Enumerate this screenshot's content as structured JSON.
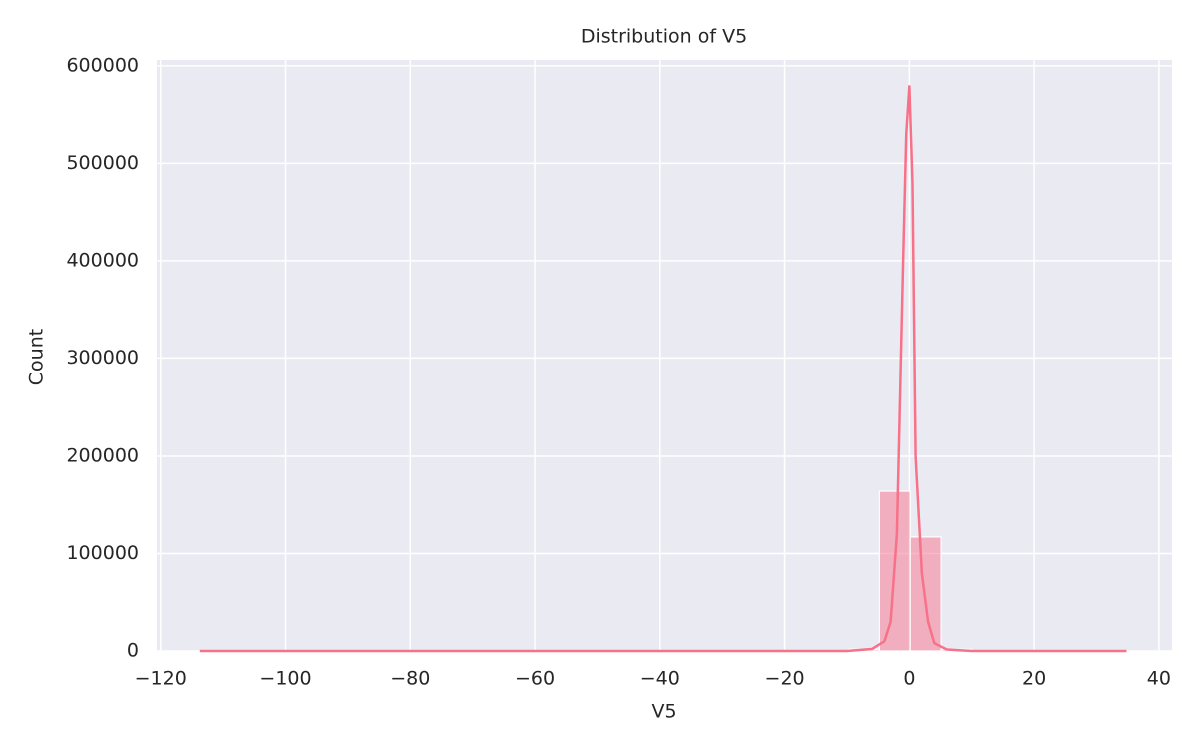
{
  "chart_data": {
    "type": "histogram",
    "title": "Distribution of V5",
    "x_label": "V5",
    "y_label": "Count",
    "bins": [
      -113.74,
      -108.79,
      -103.84,
      -98.89,
      -93.94,
      -88.98,
      -84.03,
      -79.08,
      -74.13,
      -69.18,
      -64.23,
      -59.28,
      -54.32,
      -49.37,
      -44.42,
      -39.47,
      -34.52,
      -29.57,
      -24.62,
      -19.67,
      -14.71,
      -9.76,
      -4.81,
      0.14,
      5.09,
      10.04,
      14.99,
      19.95,
      24.9,
      29.85,
      34.8
    ],
    "values": [
      1,
      0,
      0,
      0,
      0,
      0,
      0,
      0,
      0,
      0,
      0,
      0,
      0,
      0,
      0,
      0,
      0,
      0,
      0,
      5,
      60,
      1800,
      164000,
      117000,
      1700,
      200,
      30,
      8,
      2,
      1
    ],
    "color": "#f77189",
    "kde": {
      "x": [
        -113.74,
        -10,
        -6,
        -4,
        -3,
        -2,
        -1,
        -0.5,
        0,
        0.5,
        1,
        2,
        3,
        4,
        6,
        10,
        34.8
      ],
      "values": [
        0,
        0,
        2000,
        10000,
        30000,
        120000,
        400000,
        530000,
        579000,
        480000,
        200000,
        80000,
        30000,
        8000,
        1500,
        0,
        0
      ],
      "color": "#f77189"
    },
    "xlim": [
      -120.6,
      42.1
    ],
    "ylim": [
      0,
      606000
    ],
    "xticks": [
      {
        "value": -120,
        "label": "−120"
      },
      {
        "value": -100,
        "label": "−100"
      },
      {
        "value": -80,
        "label": "−80"
      },
      {
        "value": -60,
        "label": "−60"
      },
      {
        "value": -40,
        "label": "−40"
      },
      {
        "value": -20,
        "label": "−20"
      },
      0,
      20,
      40
    ],
    "yticks": [
      0,
      100000,
      200000,
      300000,
      400000,
      500000,
      600000
    ],
    "grid": true
  }
}
